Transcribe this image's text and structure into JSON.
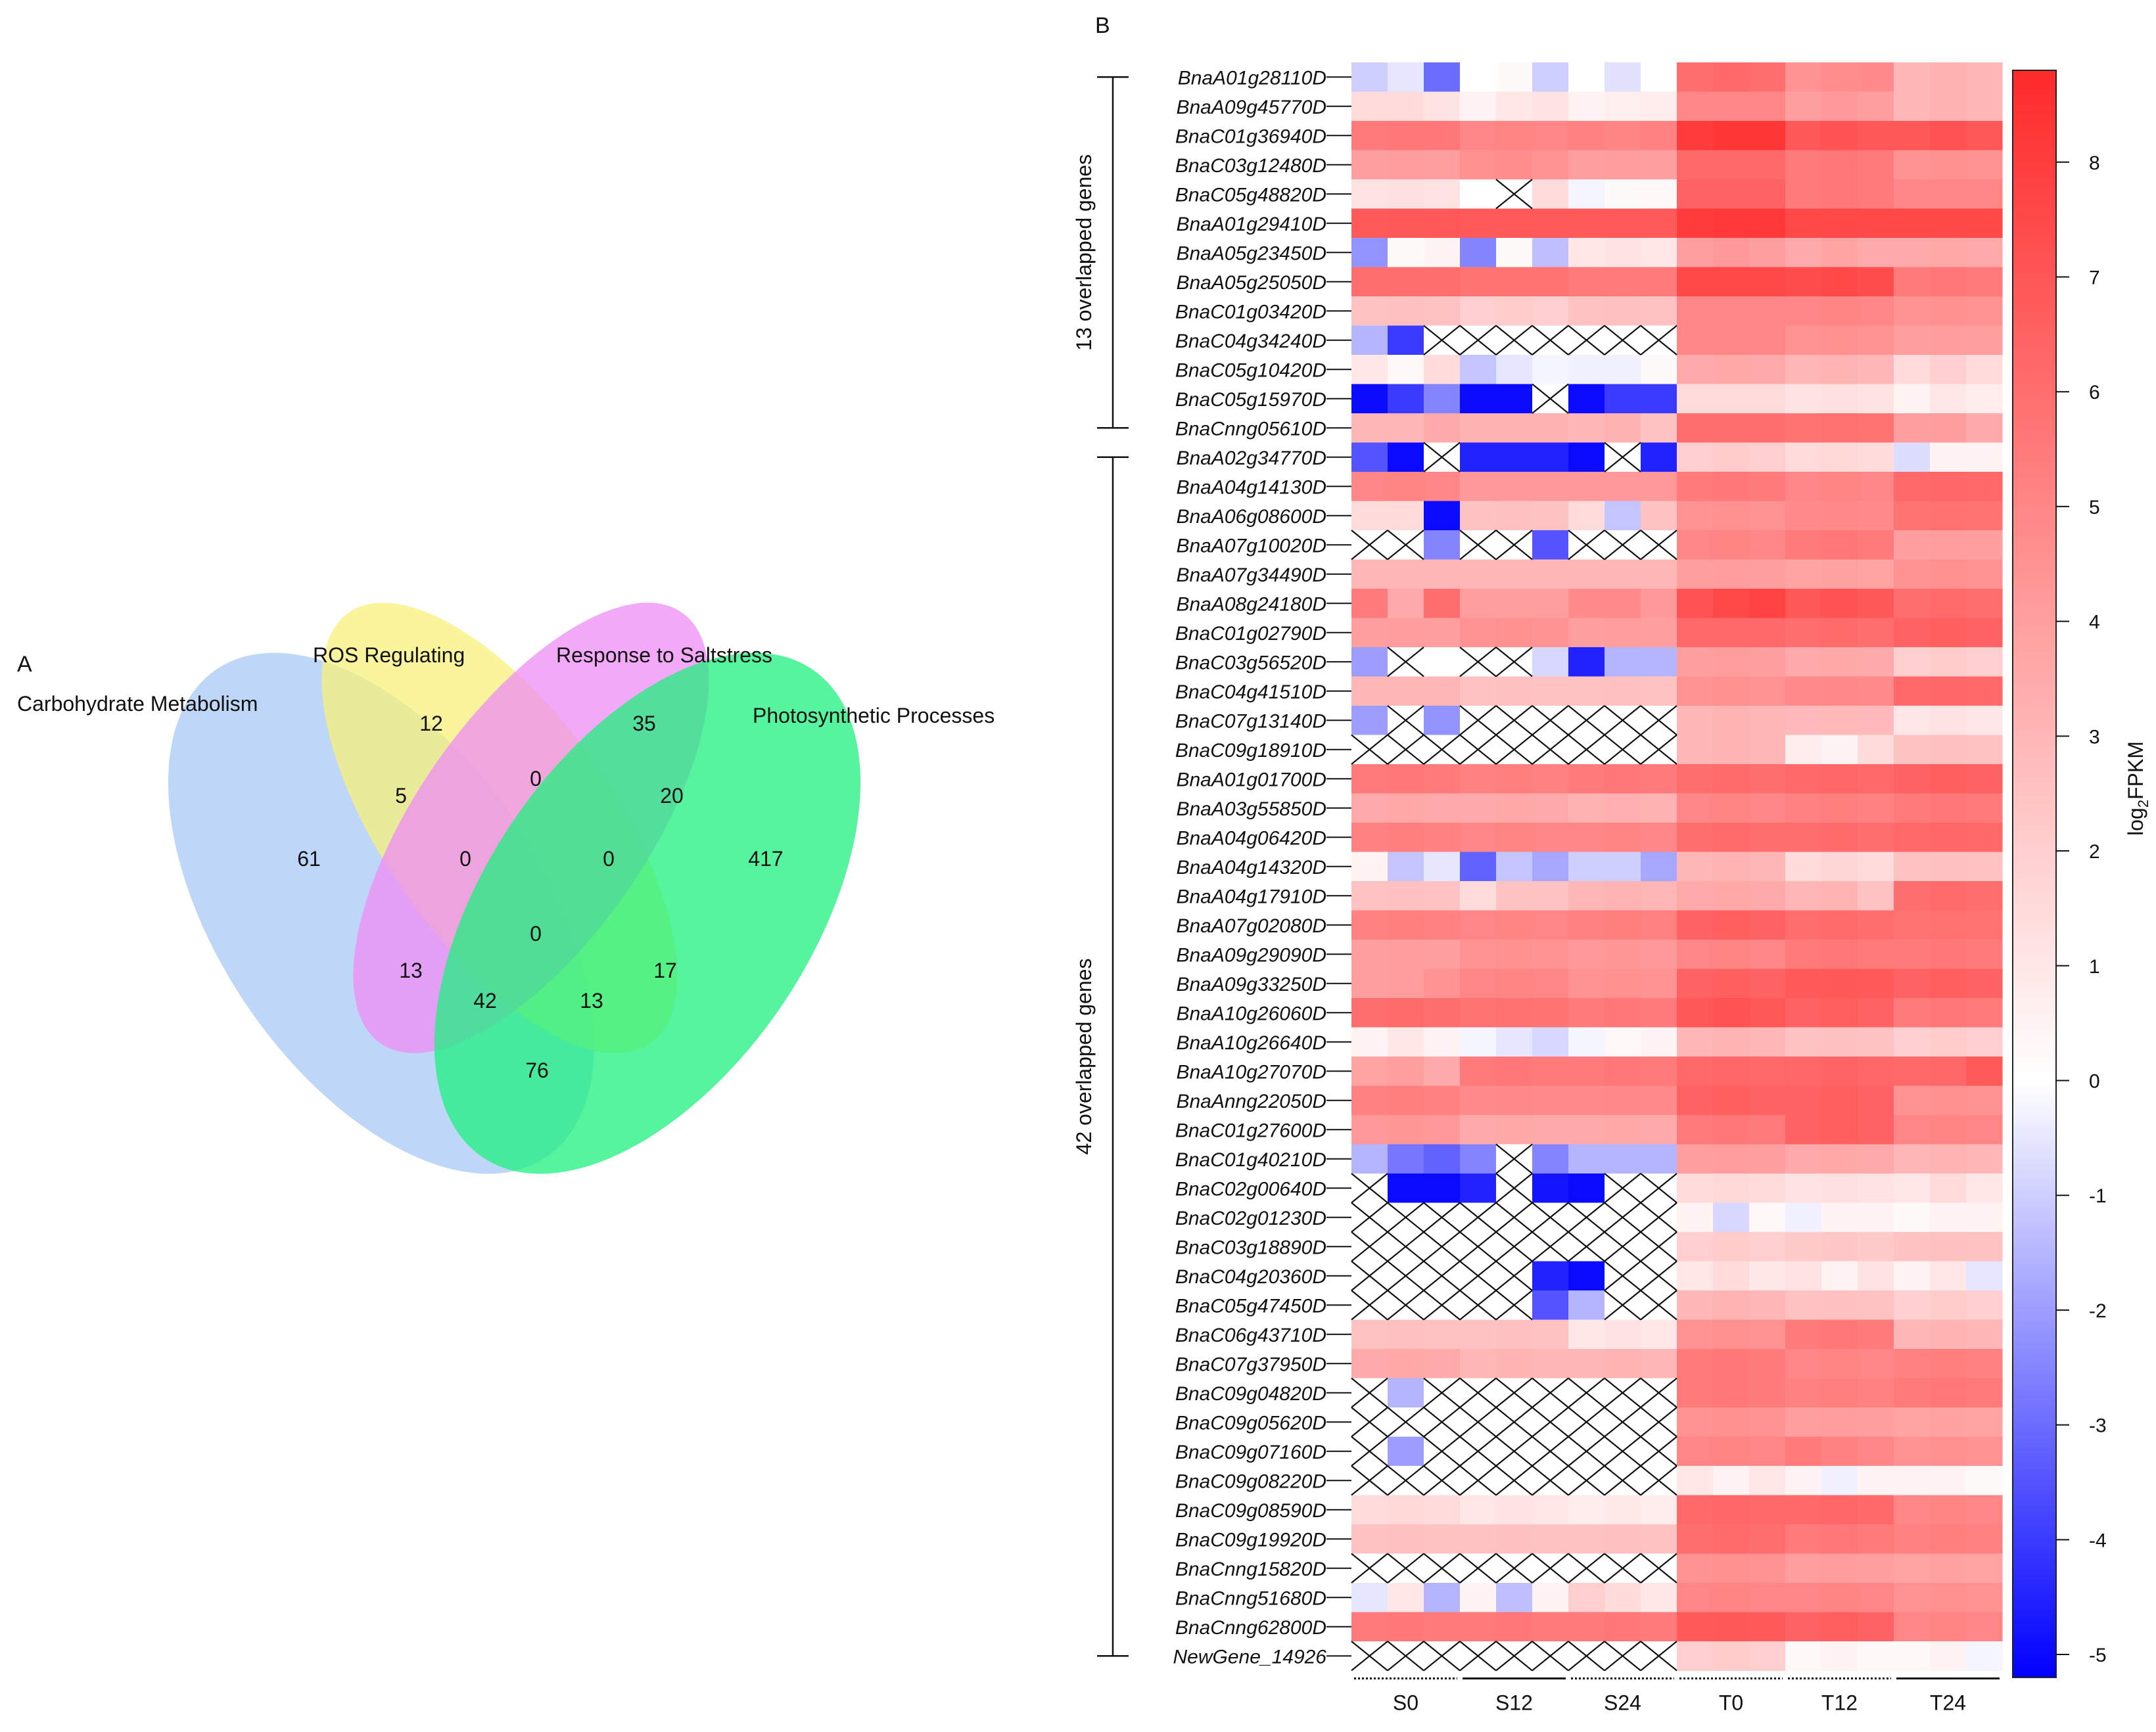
{
  "chart_data": [
    {
      "type": "venn",
      "panel_label": "A",
      "sets": [
        {
          "name": "Carbohydrate Metabolism",
          "color": "#a8c8f4"
        },
        {
          "name": "ROS Regulating",
          "color": "#f8f07c"
        },
        {
          "name": "Response to Saltstress",
          "color": "#ee8cf4"
        },
        {
          "name": "Photosynthetic Processes",
          "color": "#1ef07e"
        }
      ],
      "regions": [
        {
          "id": "C",
          "value": "61"
        },
        {
          "id": "R",
          "value": "12"
        },
        {
          "id": "S",
          "value": "35"
        },
        {
          "id": "P",
          "value": "417"
        },
        {
          "id": "CR",
          "value": "5"
        },
        {
          "id": "RS",
          "value": "0"
        },
        {
          "id": "SP",
          "value": "20"
        },
        {
          "id": "CRS",
          "value": "0"
        },
        {
          "id": "RSP",
          "value": "0"
        },
        {
          "id": "CRSP",
          "value": "0"
        },
        {
          "id": "CS",
          "value": "13"
        },
        {
          "id": "RP",
          "value": "17"
        },
        {
          "id": "CSP",
          "value": "42"
        },
        {
          "id": "CRP",
          "value": "13"
        },
        {
          "id": "CP",
          "value": "76"
        }
      ]
    },
    {
      "type": "heatmap",
      "panel_label": "B",
      "colorbar_label": "log2FPKM",
      "colorbar_ticks": [
        "8",
        "7",
        "6",
        "5",
        "4",
        "3",
        "2",
        "1",
        "0",
        "-1",
        "-2",
        "-3",
        "-4",
        "-5"
      ],
      "colorbar_range": [
        -5.2,
        8.8
      ],
      "colors": {
        "low": "#0000ff",
        "mid": "#ffffff",
        "high": "#ff2a2a"
      },
      "groups": [
        {
          "label": "S0",
          "style": "dotted"
        },
        {
          "label": "S12",
          "style": "solid"
        },
        {
          "label": "S24",
          "style": "dotted"
        },
        {
          "label": "T0",
          "style": "dotted"
        },
        {
          "label": "T12",
          "style": "dotted"
        },
        {
          "label": "T24",
          "style": "solid"
        }
      ],
      "brackets": [
        {
          "label": "13 overlapped genes",
          "first_row": 0,
          "last_row": 12
        },
        {
          "label": "42 overlapped genes",
          "first_row": 13,
          "last_row": 54
        }
      ],
      "genes": [
        "BnaA01g28110D",
        "BnaA09g45770D",
        "BnaC01g36940D",
        "BnaC03g12480D",
        "BnaC05g48820D",
        "BnaA01g29410D",
        "BnaA05g23450D",
        "BnaA05g25050D",
        "BnaC01g03420D",
        "BnaC04g34240D",
        "BnaC05g10420D",
        "BnaC05g15970D",
        "BnaCnng05610D",
        "BnaA02g34770D",
        "BnaA04g14130D",
        "BnaA06g08600D",
        "BnaA07g10020D",
        "BnaA07g34490D",
        "BnaA08g24180D",
        "BnaC01g02790D",
        "BnaC03g56520D",
        "BnaC04g41510D",
        "BnaC07g13140D",
        "BnaC09g18910D",
        "BnaA01g01700D",
        "BnaA03g55850D",
        "BnaA04g06420D",
        "BnaA04g14320D",
        "BnaA04g17910D",
        "BnaA07g02080D",
        "BnaA09g29090D",
        "BnaA09g33250D",
        "BnaA10g26060D",
        "BnaA10g26640D",
        "BnaA10g27070D",
        "BnaAnng22050D",
        "BnaC01g27600D",
        "BnaC01g40210D",
        "BnaC02g00640D",
        "BnaC02g01230D",
        "BnaC03g18890D",
        "BnaC04g20360D",
        "BnaC05g47450D",
        "BnaC06g43710D",
        "BnaC07g37950D",
        "BnaC09g04820D",
        "BnaC09g05620D",
        "BnaC09g07160D",
        "BnaC09g08220D",
        "BnaC09g08590D",
        "BnaC09g19920D",
        "BnaCnng15820D",
        "BnaCnng51680D",
        "BnaCnng62800D",
        "NewGene_14926"
      ],
      "values": [
        [
          -1,
          -0.5,
          -3,
          0,
          0.2,
          -1,
          0,
          -0.6,
          0,
          6,
          6.2,
          6,
          4.5,
          4.7,
          4.8,
          3,
          3.2,
          3
        ],
        [
          1.5,
          1.5,
          1.2,
          0.5,
          1,
          1.2,
          0.5,
          0.7,
          0.8,
          5,
          5,
          5,
          4,
          4.2,
          4,
          3,
          3.2,
          3
        ],
        [
          5.5,
          5.6,
          5.6,
          5,
          5.1,
          5,
          5.2,
          5.1,
          5.2,
          8,
          8.3,
          8.3,
          7,
          7.1,
          7,
          7,
          7.2,
          7
        ],
        [
          4,
          4.1,
          4,
          4.6,
          4.7,
          4.5,
          4,
          4.1,
          4,
          6.2,
          6.2,
          6.2,
          5.5,
          5.6,
          5.5,
          4.5,
          4.6,
          4.5
        ],
        [
          1.2,
          1.3,
          1.2,
          0,
          null,
          1.5,
          -0.2,
          0.2,
          0.3,
          6.5,
          6.5,
          6.5,
          5.5,
          5.6,
          5.5,
          5,
          5,
          5
        ],
        [
          6.8,
          6.9,
          7,
          6.8,
          6.8,
          6.8,
          6.8,
          6.8,
          6.8,
          8,
          8.2,
          8.2,
          7.5,
          7.6,
          7.5,
          7.5,
          7.5,
          7.5
        ],
        [
          -2.2,
          0.2,
          0.5,
          -2.5,
          0.2,
          -1.3,
          1,
          1.2,
          1,
          4,
          4.2,
          4,
          3.5,
          3.8,
          3.5,
          3.5,
          3.6,
          3.5
        ],
        [
          6,
          6,
          6,
          5.8,
          5.8,
          5.8,
          5.5,
          5.5,
          5.5,
          7.5,
          7.6,
          7.5,
          7.4,
          7.5,
          7.4,
          5.5,
          5.6,
          5.5
        ],
        [
          2.5,
          2.6,
          2.5,
          2,
          2.1,
          2,
          2.5,
          2.6,
          2.5,
          5,
          5,
          5,
          5,
          5.1,
          5,
          4.5,
          4.6,
          4.5
        ],
        [
          -1.5,
          -4,
          null,
          null,
          null,
          null,
          null,
          null,
          null,
          5,
          5,
          5,
          4.5,
          4.6,
          4.5,
          4,
          4.1,
          4
        ],
        [
          1,
          0.3,
          1.5,
          -1.2,
          -0.5,
          -0.2,
          -0.3,
          -0.3,
          0.2,
          3.5,
          3.6,
          3.5,
          3,
          3.1,
          3,
          1.5,
          2,
          1.5
        ],
        [
          -5,
          -4,
          -2.5,
          -5,
          -5,
          null,
          -5,
          -4,
          -4,
          1.5,
          1.5,
          1.5,
          1.2,
          1.3,
          1.2,
          0.5,
          1,
          0.8
        ],
        [
          3,
          3,
          3.5,
          3.2,
          3.2,
          3.2,
          3,
          3.2,
          2.5,
          6,
          6,
          6,
          5.8,
          5.9,
          5.8,
          4,
          4.1,
          3.5
        ],
        [
          -3.5,
          -5,
          null,
          -4.5,
          -4.5,
          -4.5,
          -5,
          null,
          -4.5,
          2,
          2.1,
          2,
          1.5,
          1.6,
          1.5,
          -0.7,
          0.5,
          0.5
        ],
        [
          5,
          5.1,
          5,
          4.2,
          4.2,
          4.2,
          4.2,
          4.2,
          4.2,
          5.5,
          5.6,
          5.5,
          5,
          5.1,
          5,
          6.2,
          6.3,
          6.2
        ],
        [
          1.5,
          1.5,
          -5,
          2.5,
          2.6,
          2.5,
          1.5,
          -1.2,
          2.5,
          4.5,
          4.6,
          4.5,
          4.8,
          4.9,
          4.8,
          5.8,
          5.9,
          5.8
        ],
        [
          null,
          null,
          -2.5,
          null,
          null,
          -3.5,
          null,
          null,
          null,
          5,
          5.1,
          5,
          5.5,
          5.6,
          5.5,
          4,
          4.1,
          4
        ],
        [
          3,
          3,
          3,
          3,
          3,
          3,
          3,
          3,
          3,
          4,
          4.1,
          4,
          3.8,
          3.9,
          3.8,
          4.5,
          4.6,
          4.5
        ],
        [
          5.5,
          3.5,
          6,
          4,
          4,
          4,
          4.8,
          4.8,
          4.2,
          7.2,
          7.5,
          7.8,
          7,
          7.1,
          7,
          6,
          6.1,
          6
        ],
        [
          4,
          4.1,
          4,
          4.5,
          4.6,
          4.5,
          4,
          4.1,
          4,
          6.2,
          6.2,
          6.2,
          6,
          6.1,
          6,
          6.5,
          6.6,
          6.5
        ],
        [
          -2,
          null,
          0,
          null,
          null,
          -0.8,
          -4.5,
          -1.5,
          -1.5,
          4,
          4.1,
          4,
          3.5,
          3.6,
          3.5,
          2,
          2.1,
          2
        ],
        [
          3,
          3,
          3,
          2.5,
          2.6,
          2.5,
          2.5,
          2.6,
          2.5,
          4.5,
          4.6,
          4.5,
          4.8,
          4.9,
          4.8,
          6.2,
          6.3,
          6.2
        ],
        [
          -2,
          null,
          -2.2,
          null,
          null,
          null,
          null,
          null,
          null,
          3,
          3.1,
          3,
          2.8,
          2.9,
          2.8,
          1,
          1.2,
          1
        ],
        [
          null,
          null,
          null,
          null,
          null,
          null,
          null,
          null,
          null,
          3,
          3.1,
          3,
          0.8,
          0.5,
          1.5,
          2.5,
          2.6,
          2.5
        ],
        [
          5.5,
          5.6,
          5.5,
          5.2,
          5.3,
          5.2,
          5.5,
          5.6,
          5.5,
          6,
          6.1,
          6,
          6.2,
          6.3,
          6.2,
          6.5,
          6.6,
          6.5
        ],
        [
          3.5,
          3.6,
          3.5,
          3.5,
          3.6,
          3.5,
          3.2,
          3.3,
          3.2,
          5,
          5.1,
          5,
          5.2,
          5.3,
          5.2,
          5.5,
          5.6,
          5.5
        ],
        [
          5.2,
          5.3,
          5.2,
          5,
          5.1,
          5,
          5,
          5.1,
          5,
          6,
          6.1,
          6,
          6,
          6.1,
          6,
          6.2,
          6.3,
          6.2
        ],
        [
          0.5,
          -1.2,
          -0.5,
          -3.2,
          -1.2,
          -1.8,
          -1,
          -1,
          -1.8,
          3,
          3.1,
          3,
          1.5,
          1.7,
          1.5,
          2.5,
          2.6,
          2.5
        ],
        [
          2.5,
          2.6,
          2.5,
          1.5,
          2.5,
          2.5,
          3,
          3.1,
          3,
          3.5,
          3.6,
          3.5,
          3,
          3.1,
          2.5,
          6,
          6.1,
          6
        ],
        [
          5.2,
          5.3,
          5.2,
          5,
          5.1,
          5,
          5.2,
          5.3,
          5.2,
          6.5,
          6.6,
          6.5,
          6,
          6.1,
          6,
          5.8,
          5.9,
          5.8
        ],
        [
          4,
          4.1,
          4,
          4.5,
          4.6,
          4.5,
          4.2,
          4.3,
          4.2,
          5,
          5.1,
          5,
          5.5,
          5.6,
          5.5,
          5.5,
          5.6,
          5.5
        ],
        [
          4,
          4.1,
          4.5,
          5,
          5.1,
          5,
          4.5,
          4.6,
          4.5,
          6.5,
          6.6,
          6.5,
          6.8,
          6.9,
          6.8,
          6.5,
          6.6,
          6.5
        ],
        [
          6,
          6.1,
          6,
          5.8,
          5.9,
          5.8,
          5.5,
          5.6,
          5.5,
          7,
          7.1,
          7,
          6.5,
          6.6,
          6.5,
          5.5,
          5.6,
          5.5
        ],
        [
          0.5,
          1,
          0.5,
          -0.2,
          -0.5,
          -0.8,
          -0.2,
          0.3,
          0.5,
          3,
          3.1,
          3,
          2.5,
          2.6,
          2.5,
          2,
          2.1,
          2
        ],
        [
          3.8,
          4,
          3.5,
          5.5,
          5.6,
          5.5,
          5.5,
          5.6,
          5.5,
          6.2,
          6.3,
          6.2,
          6.3,
          6.4,
          6.3,
          6.2,
          6.3,
          6.8
        ],
        [
          5.2,
          5.3,
          5.2,
          4.8,
          4.9,
          4.8,
          4.8,
          4.9,
          4.8,
          6.5,
          6.6,
          6.5,
          6.5,
          6.6,
          6.5,
          4.5,
          4.6,
          4.5
        ],
        [
          4.2,
          4.3,
          4.2,
          3.5,
          3.6,
          3.5,
          3.5,
          3.6,
          3.5,
          5.5,
          5.6,
          5.5,
          6.5,
          6.6,
          6.5,
          5,
          5.1,
          5
        ],
        [
          -1.5,
          -2.8,
          -3.2,
          -2.5,
          null,
          -2.5,
          -1.5,
          -1.5,
          -1.5,
          4,
          4.1,
          4,
          3.5,
          3.6,
          3.5,
          3,
          3.1,
          3
        ],
        [
          null,
          -5,
          -5,
          -4.5,
          null,
          -4.8,
          -5,
          null,
          null,
          1.5,
          1.6,
          1.5,
          1.2,
          1.3,
          1.2,
          1,
          1.5,
          1
        ],
        [
          null,
          null,
          null,
          null,
          null,
          null,
          null,
          null,
          null,
          0.5,
          -0.8,
          0.3,
          -0.3,
          0.5,
          0.5,
          0.2,
          0.5,
          0.5
        ],
        [
          null,
          null,
          null,
          null,
          null,
          null,
          null,
          null,
          null,
          2,
          2.1,
          2,
          2.2,
          2.3,
          2.2,
          2.5,
          2.6,
          2.5
        ],
        [
          null,
          null,
          null,
          null,
          null,
          -4.5,
          -5,
          null,
          null,
          1,
          1.5,
          1,
          1.2,
          0.5,
          1.2,
          0.5,
          1,
          -0.5
        ],
        [
          null,
          null,
          null,
          null,
          null,
          -3.5,
          -1.5,
          null,
          null,
          3,
          3.1,
          3,
          2.5,
          2.6,
          2.5,
          2,
          2.1,
          2
        ],
        [
          2.5,
          2.6,
          2.5,
          2.5,
          2.6,
          2.5,
          1,
          1.2,
          1,
          4.5,
          4.6,
          4.5,
          5.5,
          5.6,
          5.5,
          3,
          3.1,
          3
        ],
        [
          3.5,
          3.6,
          3.5,
          3,
          3.1,
          3,
          3,
          3.1,
          3,
          5.5,
          5.6,
          5.5,
          5,
          5.1,
          5,
          5.2,
          5.3,
          5.2
        ],
        [
          null,
          -1.5,
          null,
          null,
          null,
          null,
          null,
          null,
          null,
          5.5,
          5.6,
          5.5,
          5.2,
          5.3,
          5.2,
          5.5,
          5.6,
          5.5
        ],
        [
          null,
          null,
          null,
          null,
          null,
          null,
          null,
          null,
          null,
          4.5,
          4.6,
          4.5,
          4,
          4.1,
          4,
          3.8,
          3.9,
          3.8
        ],
        [
          null,
          -2,
          null,
          null,
          null,
          null,
          null,
          null,
          null,
          5,
          5.1,
          5,
          5.5,
          5.2,
          5,
          4.5,
          4.6,
          4.5
        ],
        [
          null,
          null,
          null,
          null,
          null,
          null,
          null,
          null,
          null,
          1,
          0.5,
          1,
          0.5,
          -0.3,
          0.5,
          0.5,
          0.5,
          0.2
        ],
        [
          1.5,
          1.6,
          1.5,
          1,
          1.1,
          1,
          0.8,
          0.9,
          0.8,
          6.2,
          6.3,
          6.2,
          6.2,
          6.3,
          6.2,
          5,
          5.1,
          5
        ],
        [
          2.5,
          2.6,
          2.5,
          2.5,
          2.6,
          2.5,
          2.5,
          2.6,
          2.5,
          6,
          6.1,
          6,
          5.5,
          5.6,
          5.5,
          5.2,
          5.3,
          5.2
        ],
        [
          null,
          null,
          null,
          null,
          null,
          null,
          null,
          null,
          null,
          4.5,
          4.6,
          4.5,
          4,
          4.1,
          4,
          3.8,
          3.9,
          3.8
        ],
        [
          -0.5,
          1,
          -1.5,
          0.5,
          -1.3,
          0.5,
          2,
          1.5,
          1,
          5,
          5.1,
          5,
          5,
          5.1,
          5,
          4.5,
          4.6,
          4.5
        ],
        [
          5.5,
          5.6,
          5.5,
          5.5,
          5.6,
          5.5,
          5.5,
          5.6,
          5.5,
          6.8,
          6.9,
          6.8,
          6.5,
          6.6,
          6.5,
          5,
          5.1,
          5
        ],
        [
          null,
          null,
          null,
          null,
          null,
          null,
          null,
          null,
          null,
          2,
          2.1,
          2,
          0.3,
          0.5,
          0.3,
          0.3,
          0.5,
          -0.2
        ]
      ]
    }
  ]
}
